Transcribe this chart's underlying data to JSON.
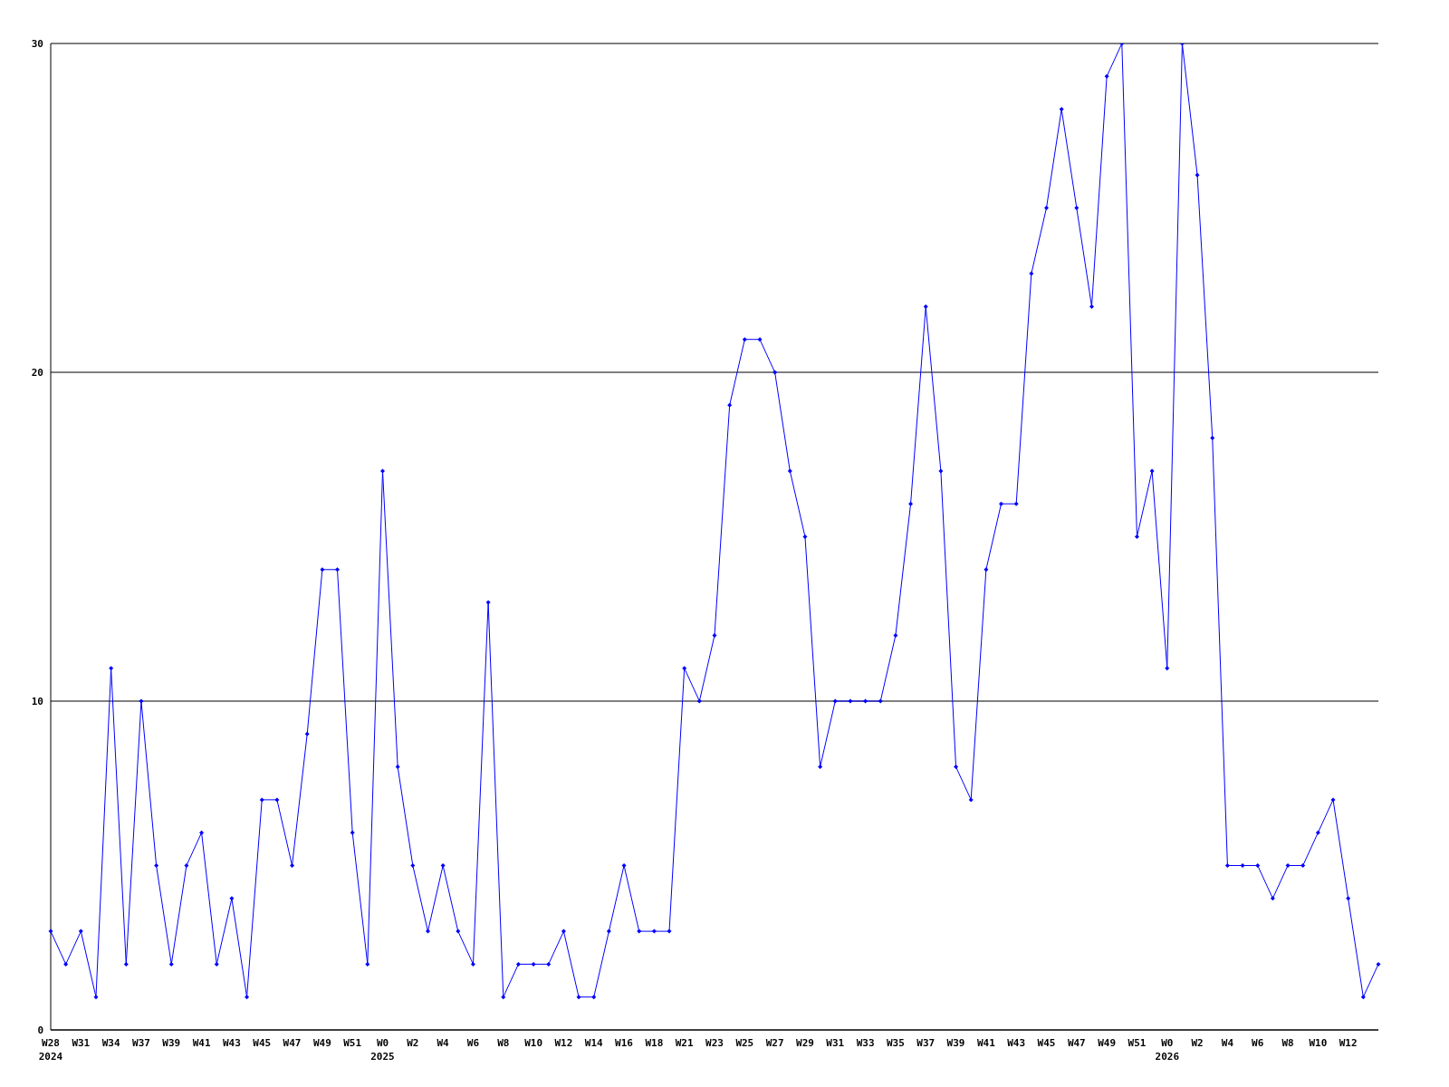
{
  "chart_data": {
    "type": "line",
    "categories": [
      "W28\n2024",
      null,
      "W31",
      null,
      "W34",
      null,
      "W37",
      null,
      "W39",
      null,
      "W41",
      null,
      "W43",
      null,
      "W45",
      null,
      "W47",
      null,
      "W49",
      null,
      "W51",
      null,
      "W0\n2025",
      null,
      "W2",
      null,
      "W4",
      null,
      "W6",
      null,
      "W8",
      null,
      "W10",
      null,
      "W12",
      null,
      "W14",
      null,
      "W16",
      null,
      "W18",
      null,
      "W21",
      null,
      "W23",
      null,
      "W25",
      null,
      "W27",
      null,
      "W29",
      null,
      "W31",
      null,
      "W33",
      null,
      "W35",
      null,
      "W37",
      null,
      "W39",
      null,
      "W41",
      null,
      "W43",
      null,
      "W45",
      null,
      "W47",
      null,
      "W49",
      null,
      "W51",
      null,
      "W0\n2026",
      null,
      "W2",
      null,
      "W4",
      null,
      "W6",
      null,
      "W8",
      null,
      "W10",
      null,
      "W12",
      null,
      null
    ],
    "series": [
      {
        "color": "#0000ff",
        "values": [
          3,
          2,
          3,
          1,
          11,
          2,
          10,
          5,
          2,
          5,
          6,
          2,
          4,
          1,
          7,
          7,
          5,
          9,
          14,
          14,
          6,
          2,
          17,
          8,
          5,
          3,
          5,
          3,
          2,
          13,
          1,
          2,
          2,
          2,
          3,
          1,
          1,
          3,
          5,
          3,
          3,
          3,
          11,
          10,
          12,
          19,
          21,
          21,
          20,
          17,
          15,
          8,
          10,
          10,
          10,
          10,
          12,
          16,
          22,
          17,
          8,
          7,
          14,
          16,
          16,
          23,
          25,
          28,
          25,
          22,
          29,
          30,
          15,
          17,
          11,
          30,
          26,
          18,
          5,
          5,
          5,
          4,
          5,
          5,
          6,
          7,
          4,
          1,
          2
        ]
      }
    ],
    "ylim": [
      0,
      30
    ],
    "yticks": [
      0,
      10,
      20,
      30
    ],
    "grid": "y",
    "marker": "diamond",
    "line_style": "solid"
  }
}
